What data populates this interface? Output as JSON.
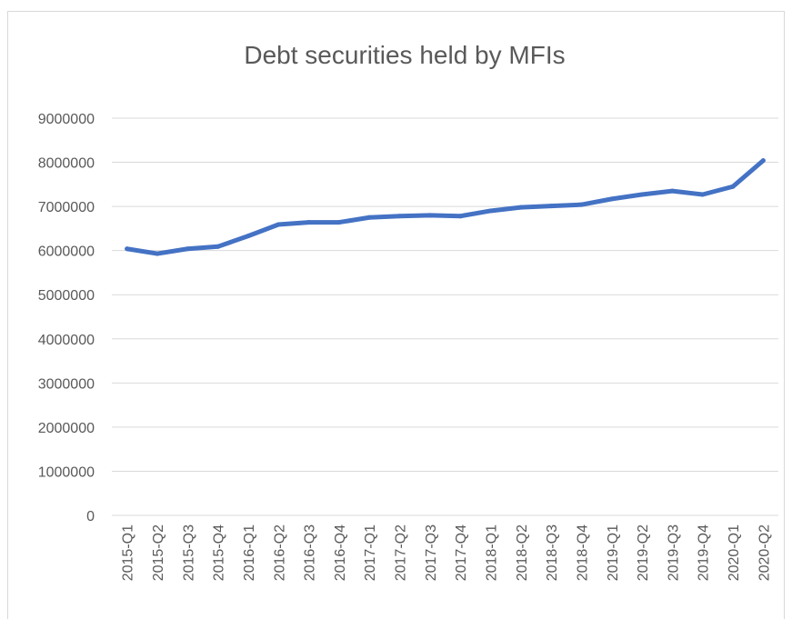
{
  "chart_data": {
    "type": "line",
    "title": "Debt securities held by MFIs",
    "xlabel": "",
    "ylabel": "",
    "ylim": [
      0,
      9000000
    ],
    "y_ticks": [
      0,
      1000000,
      2000000,
      3000000,
      4000000,
      5000000,
      6000000,
      7000000,
      8000000,
      9000000
    ],
    "y_tick_labels": [
      "0",
      "1000000",
      "2000000",
      "3000000",
      "4000000",
      "5000000",
      "6000000",
      "7000000",
      "8000000",
      "9000000"
    ],
    "grid": true,
    "legend": "none",
    "categories": [
      "2015-Q1",
      "2015-Q2",
      "2015-Q3",
      "2015-Q4",
      "2016-Q1",
      "2016-Q2",
      "2016-Q3",
      "2016-Q4",
      "2017-Q1",
      "2017-Q2",
      "2017-Q3",
      "2017-Q4",
      "2018-Q1",
      "2018-Q2",
      "2018-Q3",
      "2018-Q4",
      "2019-Q1",
      "2019-Q2",
      "2019-Q3",
      "2019-Q4",
      "2020-Q1",
      "2020-Q2"
    ],
    "series": [
      {
        "color": "#4472c4",
        "values": [
          6040000,
          5930000,
          6040000,
          6090000,
          6330000,
          6590000,
          6640000,
          6640000,
          6750000,
          6780000,
          6800000,
          6780000,
          6900000,
          6980000,
          7010000,
          7040000,
          7170000,
          7270000,
          7350000,
          7270000,
          7450000,
          8040000
        ]
      }
    ]
  }
}
